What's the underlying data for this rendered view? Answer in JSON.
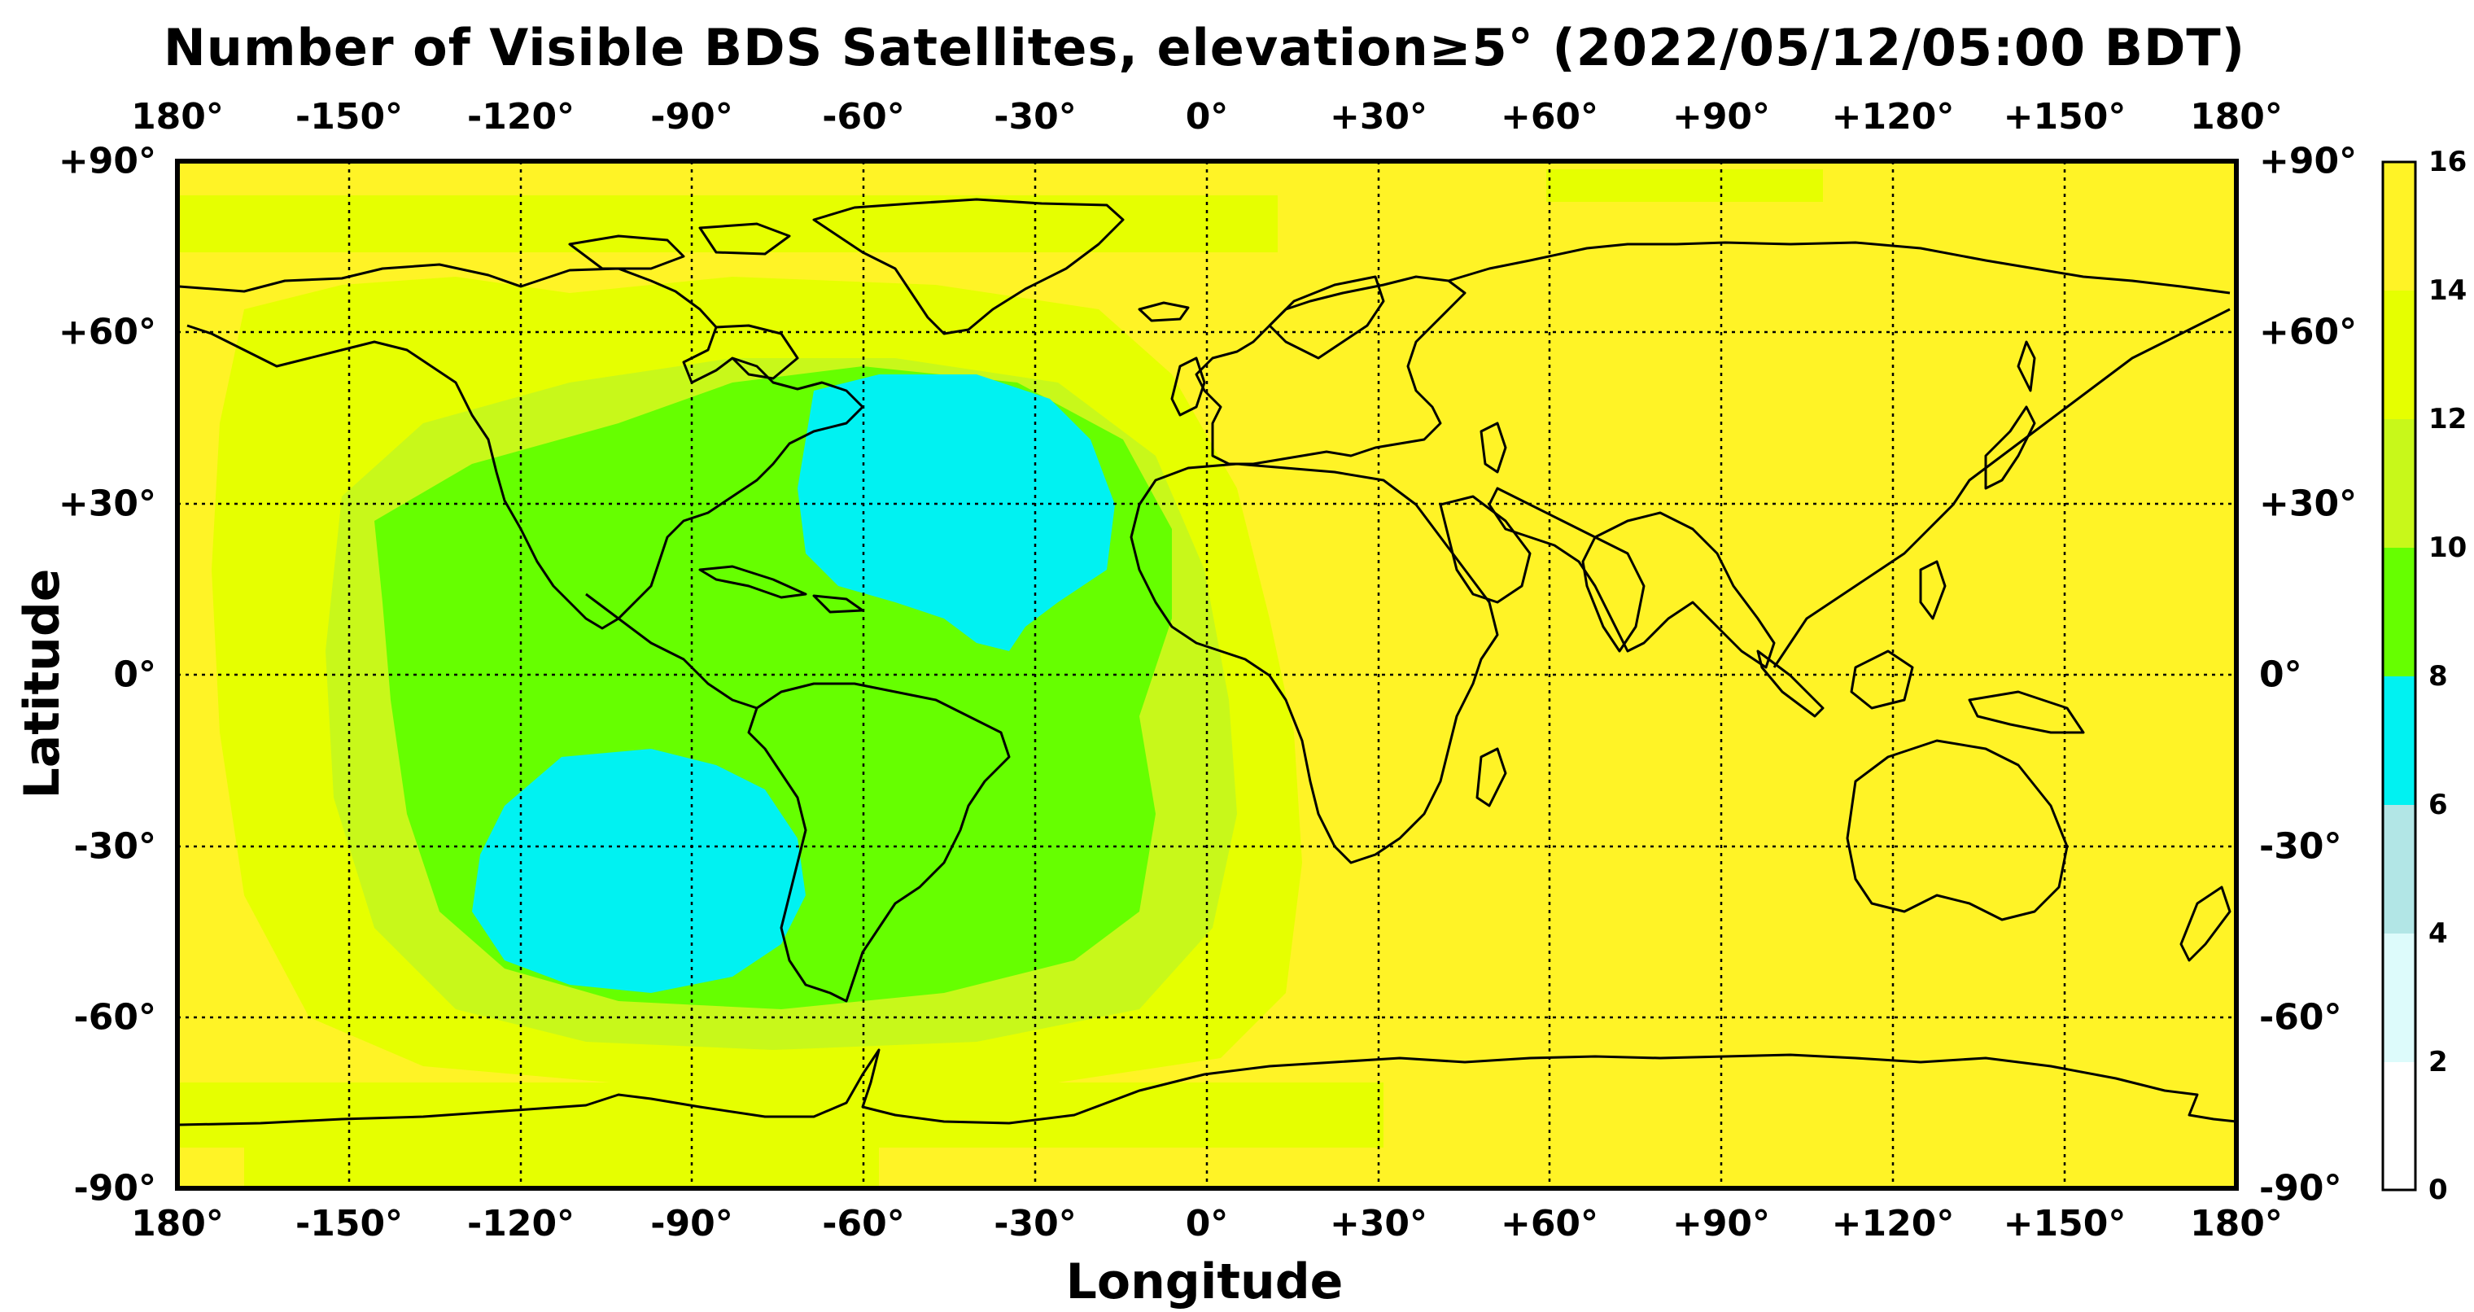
{
  "title": "Number of Visible BDS Satellites, elevation≥5° (2022/05/12/05:00 BDT)",
  "axes": {
    "xlabel": "Longitude",
    "ylabel": "Latitude",
    "lon_ticks": [
      "180°",
      "-150°",
      "-120°",
      "-90°",
      "-60°",
      "-30°",
      "0°",
      "+30°",
      "+60°",
      "+90°",
      "+120°",
      "+150°",
      "180°"
    ],
    "lat_ticks": [
      "+90°",
      "+60°",
      "+30°",
      "0°",
      "-30°",
      "-60°",
      "-90°"
    ],
    "lon_range": [
      -180,
      180
    ],
    "lat_range": [
      -90,
      90
    ],
    "grid": "dotted"
  },
  "colorbar": {
    "ticks": [
      "16",
      "14",
      "12",
      "10",
      "8",
      "6",
      "4",
      "2",
      "0"
    ],
    "bins": [
      {
        "from": 0,
        "to": 2,
        "color": "#ffffff"
      },
      {
        "from": 2,
        "to": 4,
        "color": "#ddfbfb"
      },
      {
        "from": 4,
        "to": 6,
        "color": "#b2e6e6"
      },
      {
        "from": 6,
        "to": 8,
        "color": "#00f2f2"
      },
      {
        "from": 8,
        "to": 10,
        "color": "#66ff00"
      },
      {
        "from": 10,
        "to": 12,
        "color": "#c8f81a"
      },
      {
        "from": 12,
        "to": 14,
        "color": "#e6ff00"
      },
      {
        "from": 14,
        "to": 16,
        "color": "#fff326"
      }
    ]
  }
}
